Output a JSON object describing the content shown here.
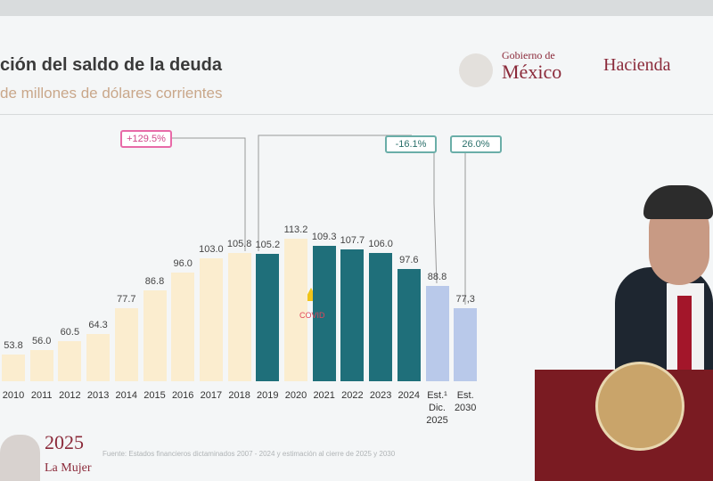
{
  "header": {
    "title": "ción del saldo de la deuda",
    "subtitle": "de millones de dólares corrientes",
    "logo_line1": "Gobierno de",
    "logo_line2": "México",
    "logo_right": "Hacienda"
  },
  "chart_data": {
    "type": "bar",
    "categories": [
      "2010",
      "2011",
      "2012",
      "2013",
      "2014",
      "2015",
      "2016",
      "2017",
      "2018",
      "2019",
      "2020",
      "2021",
      "2022",
      "2023",
      "2024",
      "Est.¹ Dic. 2025",
      "Est. 2030"
    ],
    "values": [
      53.8,
      56.0,
      60.5,
      64.3,
      77.7,
      86.8,
      96.0,
      103.0,
      105.8,
      105.2,
      113.2,
      109.3,
      107.7,
      106.0,
      97.6,
      88.8,
      77.3
    ],
    "value_labels": [
      "53.8",
      "56.0",
      "60.5",
      "64.3",
      "77.7",
      "86.8",
      "96.0",
      "103.0",
      "105.8",
      "105.2",
      "113.2",
      "109.3",
      "107.7",
      "106.0",
      "97.6",
      "88.8",
      "77,3"
    ],
    "colors": [
      "#fbedcf",
      "#fbedcf",
      "#fbedcf",
      "#fbedcf",
      "#fbedcf",
      "#fbedcf",
      "#fbedcf",
      "#fbedcf",
      "#fbedcf",
      "#1f6f7a",
      "#fbedcf",
      "#1f6f7a",
      "#1f6f7a",
      "#1f6f7a",
      "#1f6f7a",
      "#b9c9ea",
      "#b9c9ea"
    ],
    "ylim": [
      40,
      120
    ],
    "annotations": [
      "+129.5%",
      "-16.1%",
      "26.0%",
      "COVID"
    ]
  },
  "footer": {
    "year": "2025",
    "motto": "La Mujer",
    "source": "Fuente: Estados financieros dictaminados 2007 - 2024 y estimación al cierre de 2025 y 2030"
  }
}
